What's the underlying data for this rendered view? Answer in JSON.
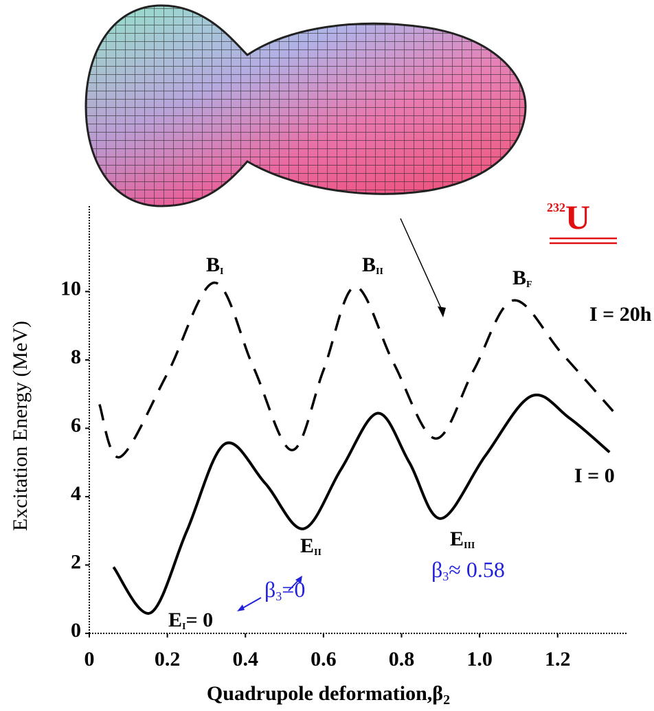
{
  "chart_data": {
    "type": "line",
    "ylabel": "Excitation Energy (MeV)",
    "xlabel": "Quadrupole deformation,β",
    "xlabel_sub": "2",
    "xlim": [
      0,
      1.38
    ],
    "ylim": [
      0,
      12.5
    ],
    "xticks": [
      0,
      0.2,
      0.4,
      0.6,
      0.8,
      {
        "value": 1,
        "label": "1.0"
      },
      1.2
    ],
    "yticks": [
      0,
      2,
      4,
      6,
      8,
      10
    ],
    "series": [
      {
        "name": "I = 0",
        "color": "#000000",
        "dash": false,
        "x": [
          0.062,
          0.157,
          0.25,
          0.347,
          0.45,
          0.549,
          0.645,
          0.739,
          0.82,
          0.901,
          1.015,
          1.132,
          1.23,
          1.333
        ],
        "values": [
          1.94,
          0.6,
          3.0,
          5.54,
          4.4,
          3.06,
          4.8,
          6.44,
          5.0,
          3.36,
          5.2,
          6.94,
          6.3,
          5.3
        ]
      },
      {
        "name": "I = 20h",
        "color": "#000000",
        "dash": true,
        "x": [
          0.026,
          0.079,
          0.2,
          0.32,
          0.42,
          0.519,
          0.6,
          0.681,
          0.78,
          0.887,
          0.985,
          1.086,
          1.21,
          1.342
        ],
        "values": [
          6.7,
          5.16,
          7.6,
          10.26,
          7.8,
          5.36,
          7.7,
          10.14,
          7.9,
          5.7,
          7.7,
          9.74,
          8.2,
          6.5
        ]
      }
    ],
    "annotations": [
      {
        "text": "B",
        "sub": "I"
      },
      {
        "text": "B",
        "sub": "II"
      },
      {
        "text": "B",
        "sub": "F"
      },
      {
        "text": "E",
        "sub": "II"
      },
      {
        "text": "E",
        "sub": "III"
      },
      {
        "text": "E",
        "sub": "I",
        "after": "= 0"
      },
      {
        "text": "β",
        "sub": "3",
        "after": "=0"
      },
      {
        "text": "β",
        "sub": "3",
        "after": "≈ 0.58"
      },
      {
        "sup": "232",
        "text": "U"
      }
    ]
  }
}
